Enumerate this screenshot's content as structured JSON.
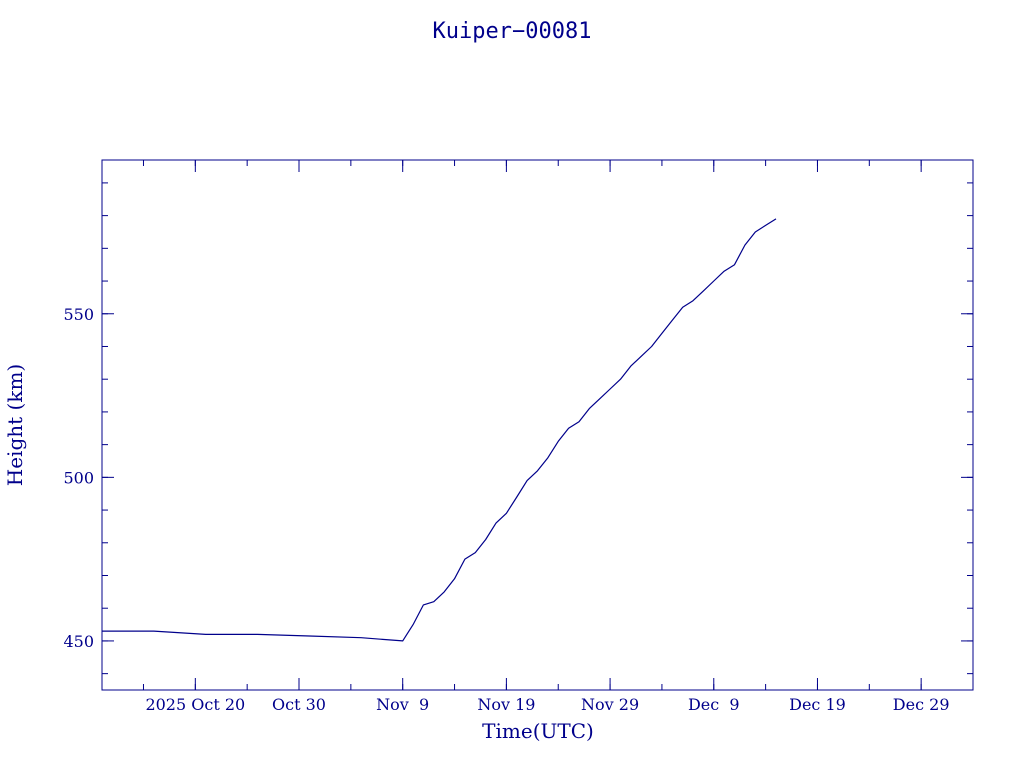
{
  "chart_data": {
    "type": "line",
    "title": "Kuiper−00081",
    "xlabel": "Time(UTC)",
    "ylabel": "Height (km)",
    "x_tick_labels": [
      "2025 Oct 20",
      "Oct 30",
      "Nov  9",
      "Nov 19",
      "Nov 29",
      "Dec  9",
      "Dec 19",
      "Dec 29"
    ],
    "x_tick_dates": [
      "2025-10-20",
      "2025-10-30",
      "2025-11-09",
      "2025-11-19",
      "2025-11-29",
      "2025-12-09",
      "2025-12-19",
      "2025-12-29"
    ],
    "xlim": [
      "2025-10-11",
      "2026-01-03"
    ],
    "y_ticks": [
      450,
      500,
      550
    ],
    "y_tick_labels": [
      "450",
      "500",
      "550"
    ],
    "ylim": [
      435,
      597
    ],
    "grid": false,
    "series": [
      {
        "x": [
          "2025-10-11",
          "2025-10-16",
          "2025-10-21",
          "2025-10-26",
          "2025-10-31",
          "2025-11-05",
          "2025-11-09",
          "2025-11-10",
          "2025-11-11",
          "2025-11-12",
          "2025-11-13",
          "2025-11-14",
          "2025-11-15",
          "2025-11-16",
          "2025-11-17",
          "2025-11-18",
          "2025-11-19",
          "2025-11-20",
          "2025-11-21",
          "2025-11-22",
          "2025-11-23",
          "2025-11-24",
          "2025-11-25",
          "2025-11-26",
          "2025-11-27",
          "2025-11-28",
          "2025-11-29",
          "2025-11-30",
          "2025-12-01",
          "2025-12-02",
          "2025-12-03",
          "2025-12-04",
          "2025-12-05",
          "2025-12-06",
          "2025-12-07",
          "2025-12-08",
          "2025-12-09",
          "2025-12-10",
          "2025-12-11",
          "2025-12-12",
          "2025-12-13",
          "2025-12-14",
          "2025-12-15"
        ],
        "values": [
          453,
          453,
          452,
          452,
          451.5,
          451,
          450,
          455,
          461,
          462,
          465,
          469,
          475,
          477,
          481,
          486,
          489,
          494,
          499,
          502,
          506,
          511,
          515,
          517,
          521,
          524,
          527,
          530,
          534,
          537,
          540,
          544,
          548,
          552,
          554,
          557,
          560,
          563,
          565,
          571,
          575,
          577,
          579
        ]
      }
    ]
  }
}
